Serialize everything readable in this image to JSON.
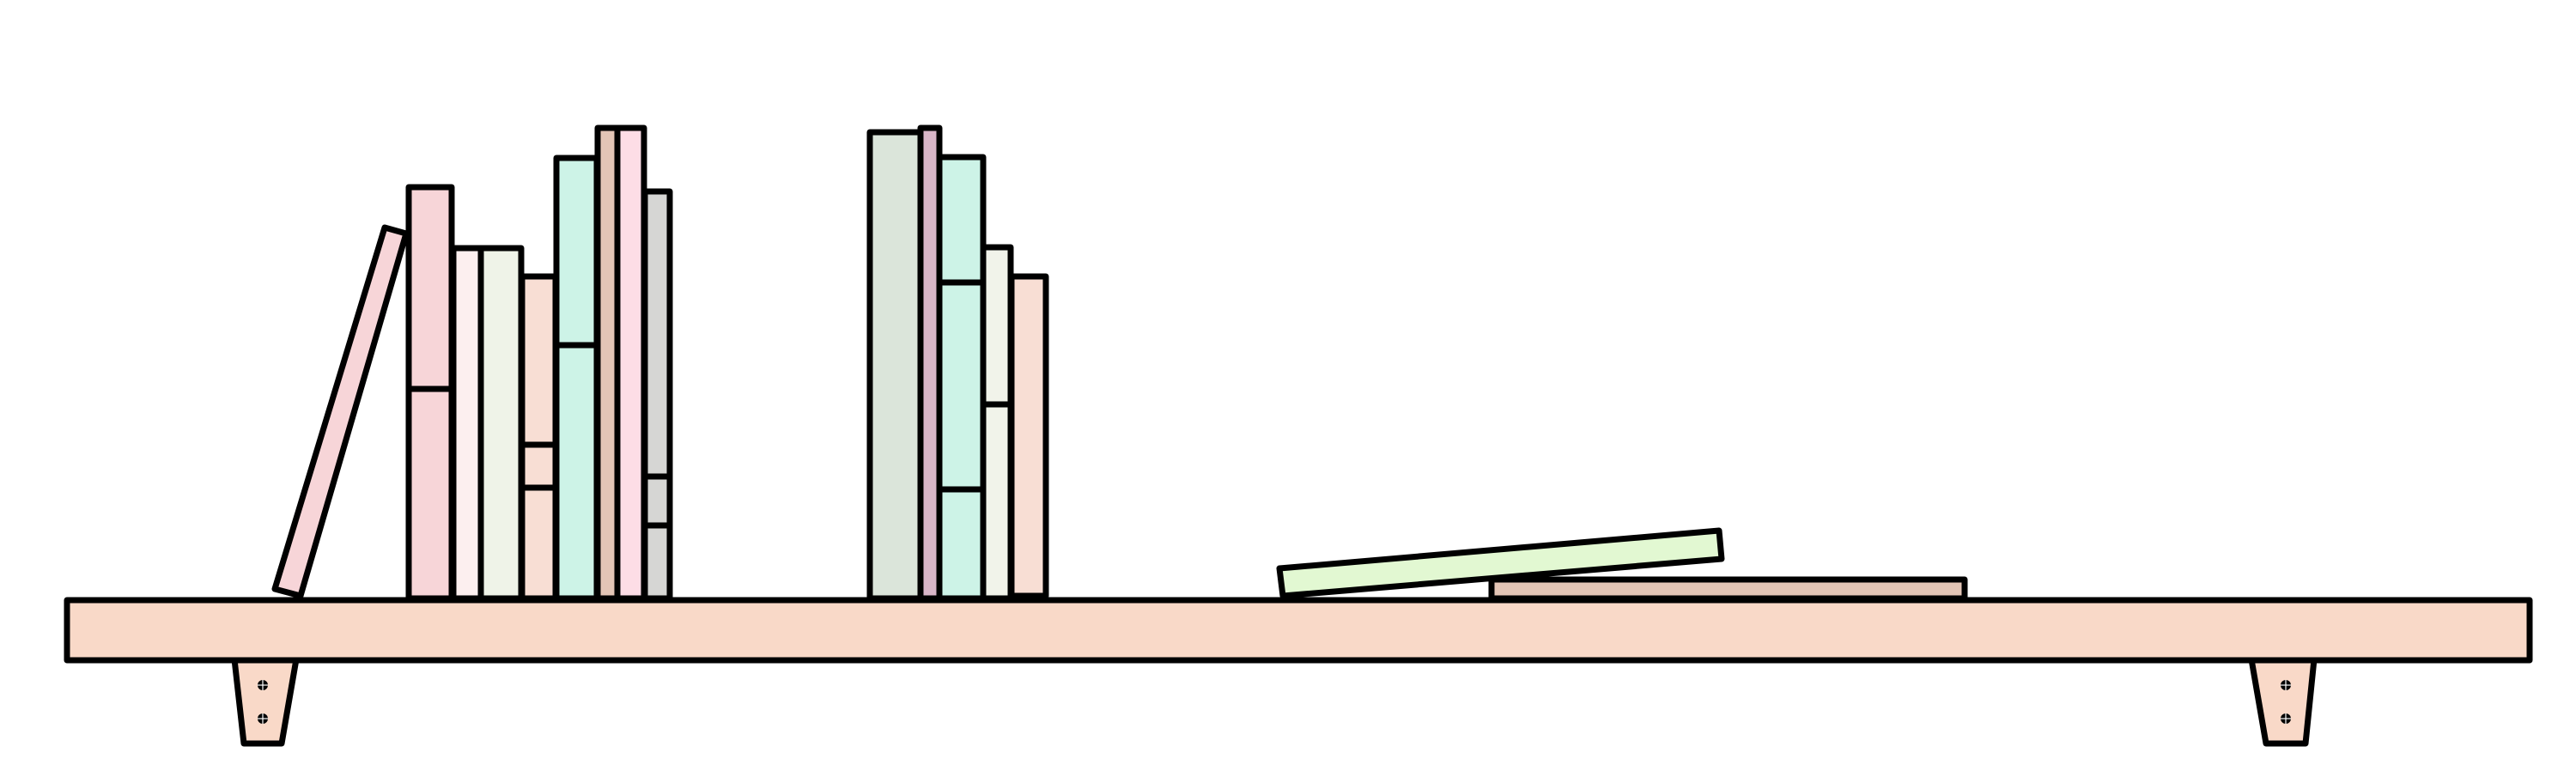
{
  "colors": {
    "background": "#ffffff",
    "outline": "#000000",
    "shelf": "#f9d9c8",
    "leaning_book": "#f7d5d8",
    "book_pink": "#f7d5d8",
    "book_blush": "#fcefef",
    "book_cream_green": "#eff3e8",
    "book_peach": "#f8ded4",
    "book_mint": "#cdf3e7",
    "book_tan": "#e3c5b6",
    "book_rose": "#fddde6",
    "book_gray": "#d6d6d4",
    "book_sage": "#dbe5da",
    "book_mauve": "#d9b6c8",
    "book_ivory": "#f1f3ea",
    "book_lime": "#e2f8d2"
  },
  "icons": {
    "screw": "screw-icon"
  }
}
